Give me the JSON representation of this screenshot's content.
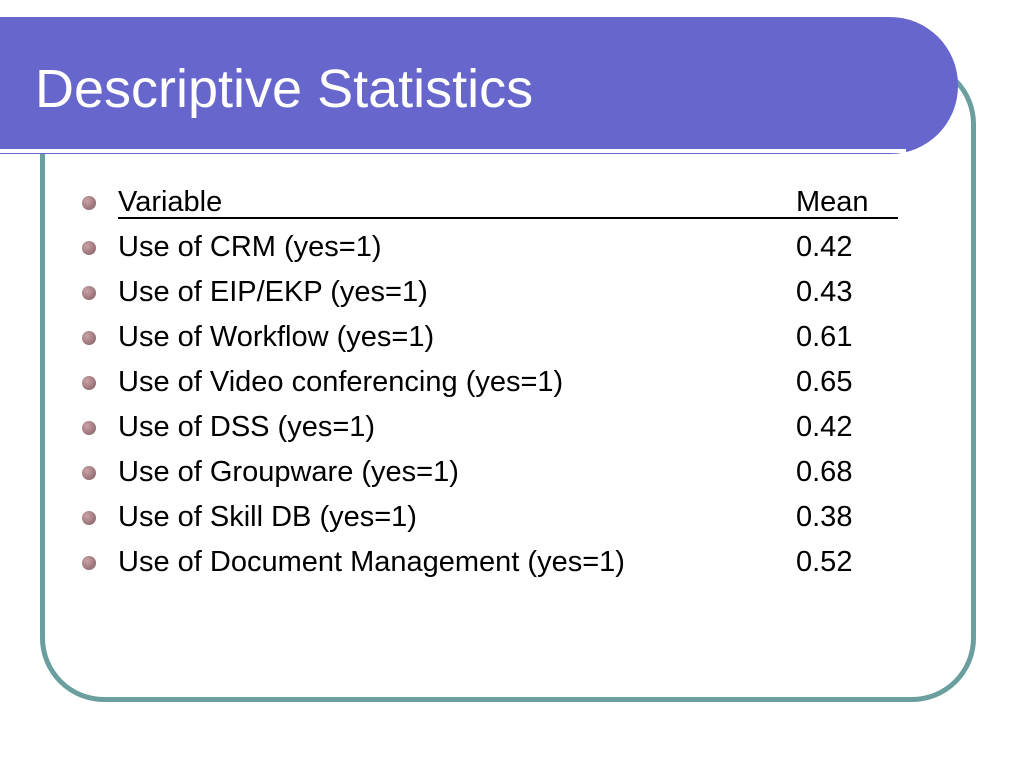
{
  "slide": {
    "title": "Descriptive Statistics"
  },
  "table": {
    "header": {
      "variable": "Variable",
      "mean": "Mean"
    },
    "rows": [
      {
        "variable": "Use of CRM (yes=1)",
        "mean": "0.42"
      },
      {
        "variable": "Use of EIP/EKP (yes=1)",
        "mean": "0.43"
      },
      {
        "variable": "Use of Workflow (yes=1)",
        "mean": "0.61"
      },
      {
        "variable": "Use of Video conferencing (yes=1)",
        "mean": "0.65"
      },
      {
        "variable": "Use of DSS (yes=1)",
        "mean": "0.42"
      },
      {
        "variable": "Use of Groupware (yes=1)",
        "mean": "0.68"
      },
      {
        "variable": "Use of Skill DB (yes=1)",
        "mean": "0.38"
      },
      {
        "variable": "Use of Document Management (yes=1)",
        "mean": "0.52"
      }
    ]
  },
  "colors": {
    "title_bar": "#6666cc",
    "frame_border": "#6a9e9f",
    "bullet": "#a27b80",
    "text": "#000000"
  }
}
